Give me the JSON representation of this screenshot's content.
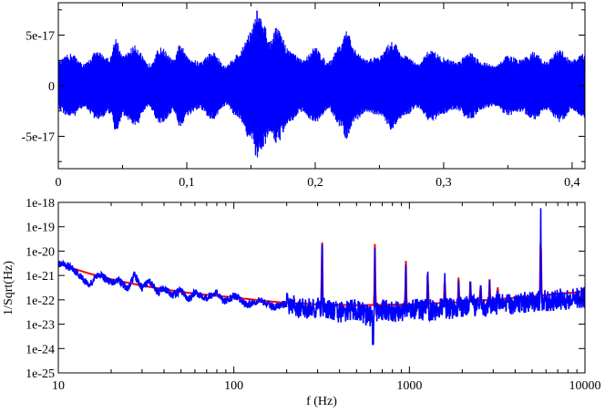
{
  "chart_data": [
    {
      "type": "line",
      "title": "",
      "xlabel": "",
      "ylabel": "",
      "xlim": [
        0,
        0.41
      ],
      "ylim": [
        -8.2e-17,
        8.2e-17
      ],
      "grid": false,
      "xticks": [
        0,
        0.1,
        0.2,
        0.3,
        0.4
      ],
      "xtick_labels": [
        "0",
        "0,1",
        "0,2",
        "0,3",
        "0,4"
      ],
      "yticks": [
        5e-17,
        0,
        -5e-17
      ],
      "ytick_labels": [
        "5e-17",
        "0",
        "-5e-17"
      ],
      "series": [
        {
          "color": "#0000ff",
          "style": "dense oscillation filled envelope",
          "envelope_t": [
            0,
            0.01,
            0.02,
            0.03,
            0.04,
            0.045,
            0.05,
            0.06,
            0.07,
            0.08,
            0.09,
            0.095,
            0.1,
            0.11,
            0.12,
            0.13,
            0.14,
            0.15,
            0.155,
            0.16,
            0.165,
            0.17,
            0.18,
            0.19,
            0.2,
            0.21,
            0.22,
            0.225,
            0.23,
            0.24,
            0.25,
            0.26,
            0.27,
            0.28,
            0.29,
            0.3,
            0.31,
            0.32,
            0.33,
            0.34,
            0.35,
            0.36,
            0.37,
            0.38,
            0.39,
            0.4,
            0.41
          ],
          "envelope_amp": [
            2.5e-17,
            3.2e-17,
            2.2e-17,
            3.4e-17,
            2.8e-17,
            4.8e-17,
            3e-17,
            4e-17,
            2.2e-17,
            3.8e-17,
            2.6e-17,
            4.2e-17,
            3e-17,
            2.4e-17,
            3.4e-17,
            2e-17,
            3.2e-17,
            5.5e-17,
            7.6e-17,
            6e-17,
            4.5e-17,
            5.8e-17,
            3.6e-17,
            2.6e-17,
            3.8e-17,
            2.4e-17,
            4.2e-17,
            5.5e-17,
            3.6e-17,
            2.6e-17,
            3e-17,
            4.4e-17,
            3e-17,
            2.2e-17,
            3.6e-17,
            2.8e-17,
            2.4e-17,
            3.4e-17,
            2.4e-17,
            2e-17,
            3e-17,
            2.6e-17,
            3.4e-17,
            2.4e-17,
            3.6e-17,
            2.6e-17,
            3.2e-17
          ]
        }
      ]
    },
    {
      "type": "line",
      "title": "",
      "xlabel": "f (Hz)",
      "ylabel": "1/Sqrt(Hz)",
      "xscale": "log",
      "yscale": "log",
      "xlim": [
        10,
        10000
      ],
      "ylim": [
        1e-25,
        1e-18
      ],
      "grid": false,
      "xtick_labels": [
        "10",
        "100",
        "1000",
        "10000"
      ],
      "ytick_labels": [
        "1e-18",
        "1e-19",
        "1e-20",
        "1e-21",
        "1e-22",
        "1e-23",
        "1e-24",
        "1e-25"
      ],
      "series": [
        {
          "color": "#ff0000",
          "x": [
            10,
            15,
            20,
            30,
            50,
            70,
            100,
            150,
            200,
            300,
            500,
            1000,
            2000,
            5000,
            10000
          ],
          "y": [
            3e-21,
            1.2e-21,
            7e-22,
            3.8e-22,
            2.1e-22,
            1.6e-22,
            1.25e-22,
            9e-23,
            7.5e-23,
            6.5e-23,
            6e-23,
            6.5e-23,
            8e-23,
            1.4e-22,
            2.2e-22
          ],
          "peaks": [
            {
              "f": 318,
              "y": 2.2e-19
            },
            {
              "f": 636,
              "y": 2.5e-20
            },
            {
              "f": 954,
              "y": 8e-21
            },
            {
              "f": 1272,
              "y": 4.5e-21
            },
            {
              "f": 1590,
              "y": 2.2e-21
            },
            {
              "f": 1908,
              "y": 1.4e-21
            },
            {
              "f": 2226,
              "y": 1.1e-21
            },
            {
              "f": 2544,
              "y": 8e-22
            },
            {
              "f": 2862,
              "y": 7e-22
            },
            {
              "f": 3180,
              "y": 5e-22
            },
            {
              "f": 5600,
              "y": 1e-18
            }
          ]
        },
        {
          "color": "#0000ff",
          "x": [
            10,
            12,
            15,
            17,
            20,
            22,
            25,
            27,
            30,
            33,
            37,
            40,
            45,
            50,
            55,
            60,
            70,
            80,
            90,
            100,
            120,
            140,
            170,
            200,
            250,
            300,
            400,
            500,
            600,
            700,
            800,
            1000,
            1500,
            2000,
            3000,
            5000,
            7000,
            10000
          ],
          "y": [
            3e-21,
            2e-21,
            4e-22,
            1.2e-21,
            5e-22,
            7e-22,
            2.5e-22,
            1.1e-21,
            3e-22,
            6e-22,
            2e-22,
            3e-22,
            1.5e-22,
            2.5e-22,
            1e-22,
            2e-22,
            1.2e-22,
            2e-22,
            8e-23,
            1.5e-22,
            6e-23,
            1e-22,
            5e-23,
            7e-23,
            4e-23,
            5e-23,
            3e-23,
            4e-23,
            2e-23,
            4e-23,
            3e-23,
            4e-23,
            4e-23,
            5e-23,
            6e-23,
            8e-23,
            1e-22,
            1.3e-22
          ],
          "peaks": [
            {
              "f": 318,
              "y": 1.6e-19
            },
            {
              "f": 636,
              "y": 2e-20
            },
            {
              "f": 954,
              "y": 7e-21
            },
            {
              "f": 1272,
              "y": 4e-21
            },
            {
              "f": 1590,
              "y": 2e-21
            },
            {
              "f": 1908,
              "y": 1.3e-21
            },
            {
              "f": 2226,
              "y": 1e-21
            },
            {
              "f": 2544,
              "y": 7.5e-22
            },
            {
              "f": 2862,
              "y": 6.5e-22
            },
            {
              "f": 3180,
              "y": 4.8e-22
            },
            {
              "f": 5600,
              "y": 1e-18
            }
          ],
          "dips": [
            {
              "f": 620,
              "y": 1.5e-24
            }
          ]
        }
      ]
    }
  ]
}
